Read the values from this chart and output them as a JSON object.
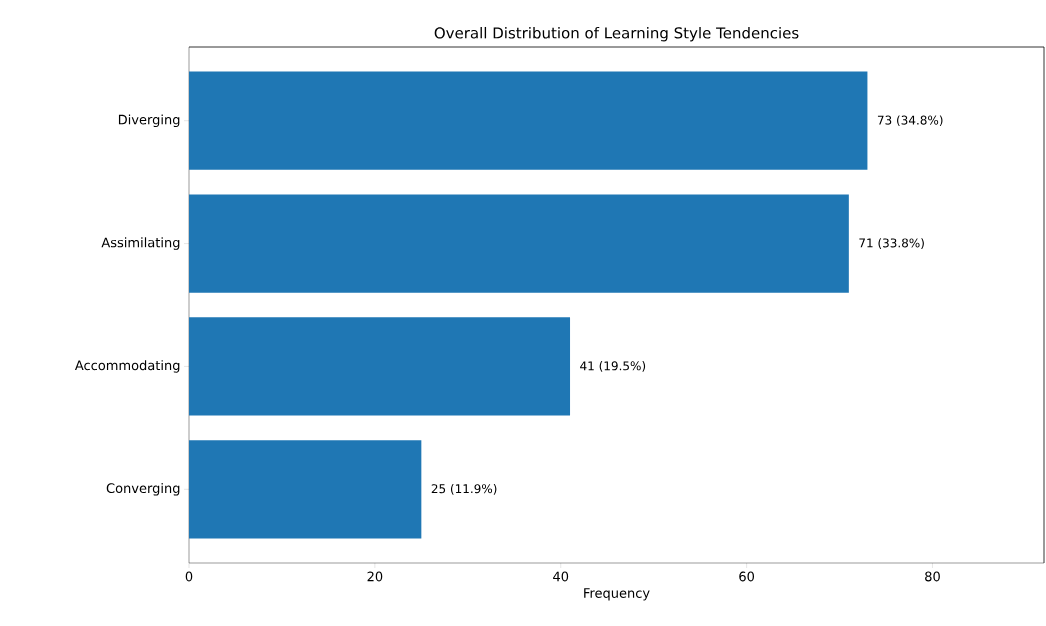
{
  "chart_data": {
    "type": "bar",
    "orientation": "horizontal",
    "title": "Overall Distribution of Learning Style Tendencies",
    "xlabel": "Frequency",
    "categories": [
      "Diverging",
      "Assimilating",
      "Accommodating",
      "Converging"
    ],
    "values": [
      73,
      71,
      41,
      25
    ],
    "value_labels": [
      "73 (34.8%)",
      "71 (33.8%)",
      "41 (19.5%)",
      "25 (11.9%)"
    ],
    "color": "#1f77b4",
    "xlim": [
      0,
      92
    ],
    "xticks": [
      0,
      20,
      40,
      60,
      80
    ]
  }
}
